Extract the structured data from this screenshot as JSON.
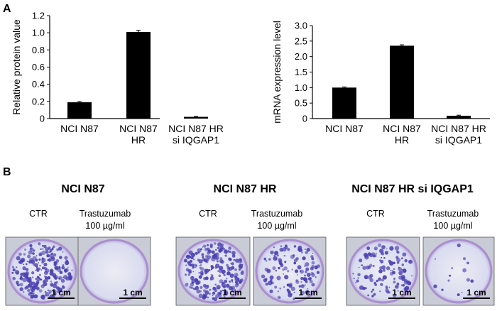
{
  "panels": {
    "a": "A",
    "b": "B"
  },
  "chart_data": [
    {
      "type": "bar",
      "title": "",
      "xlabel": "",
      "ylabel": "Relative protein value",
      "categories": [
        [
          "NCI N87"
        ],
        [
          "NCI N87",
          "HR"
        ],
        [
          "NCI N87  HR",
          "si IQGAP1"
        ]
      ],
      "values": [
        0.19,
        1.01,
        0.02
      ],
      "errors": [
        0.01,
        0.02,
        0.005
      ],
      "ylim": [
        0,
        1.2
      ],
      "yticks": [
        0,
        0.2,
        0.4,
        0.6,
        0.8,
        1.0,
        1.2
      ],
      "yticklabels": [
        "0",
        "0.2",
        "0.4",
        "0.6",
        "0.8",
        "1.0",
        "1.2"
      ],
      "bar_color": "#000000",
      "grid": false
    },
    {
      "type": "bar",
      "title": "",
      "xlabel": "",
      "ylabel": "mRNA expression level",
      "categories": [
        [
          "NCI N87"
        ],
        [
          "NCI N87",
          "HR"
        ],
        [
          "NCI N87  HR",
          "si IQGAP1"
        ]
      ],
      "values": [
        1.0,
        2.35,
        0.09
      ],
      "errors": [
        0.02,
        0.03,
        0.02
      ],
      "ylim": [
        0,
        3.0
      ],
      "yticks": [
        0,
        0.5,
        1.0,
        1.5,
        2.0,
        2.5,
        3.0
      ],
      "yticklabels": [
        "0",
        "0.5",
        "1.0",
        "1.5",
        "2.0",
        "2.5",
        "3.0"
      ],
      "bar_color": "#000000",
      "grid": false
    }
  ],
  "colony_panels": [
    {
      "title": "NCI N87",
      "ctr_label": "CTR",
      "treat_label_1": "Trastuzumab",
      "treat_label_2": "100 µg/ml",
      "scale_ctr": "1 cm",
      "scale_treat": "1 cm",
      "ctr_density": "high",
      "treat_density": "none"
    },
    {
      "title": "NCI N87 HR",
      "ctr_label": "CTR",
      "treat_label_1": "Trastuzumab",
      "treat_label_2": "100 µg/ml",
      "scale_ctr": "1 cm",
      "scale_treat": "1 cm",
      "ctr_density": "high",
      "treat_density": "medium"
    },
    {
      "title": "NCI N87 HR si IQGAP1",
      "ctr_label": "CTR",
      "treat_label_1": "Trastuzumab",
      "treat_label_2": "100 µg/ml",
      "scale_ctr": "1 cm",
      "scale_treat": "1 cm",
      "ctr_density": "medium",
      "treat_density": "very-low"
    }
  ],
  "colors": {
    "stain": "#4a3fb0",
    "well_bg": "#d9dcef",
    "well_rim": "#a98fcf"
  }
}
